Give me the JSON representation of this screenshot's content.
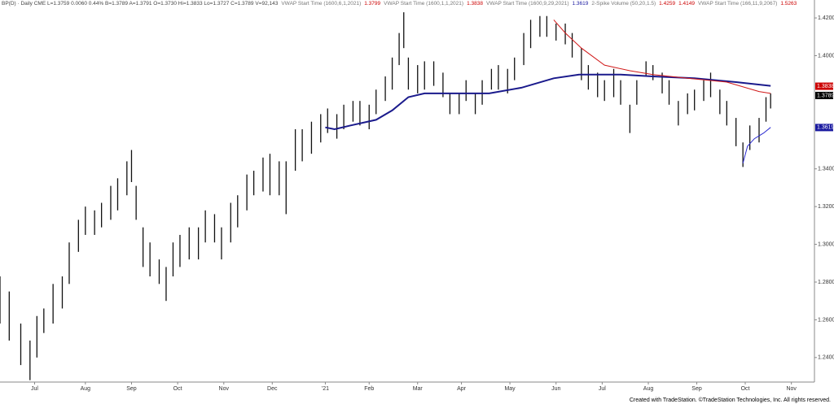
{
  "chart_data": {
    "type": "ohlc",
    "header": [
      {
        "text": "BP(D) · Daily  CME  L=1.3759  0.0060  0.44%  B=1.3789  A=1.3791  O=1.3730  Hi=1.3833  Lo=1.3727  C=1.3789  V=92,143",
        "color": "#444444"
      },
      {
        "text": "VWAP Start Time (1600,6,1,2021)",
        "color": "#777777"
      },
      {
        "text": "1.3799",
        "color": "#cc0000"
      },
      {
        "text": "VWAP Start Time (1600,1,1,2021)",
        "color": "#777777"
      },
      {
        "text": "1.3838",
        "color": "#cc0000"
      },
      {
        "text": "VWAP Start Time (1600,9,29,2021)",
        "color": "#777777"
      },
      {
        "text": "1.3619",
        "color": "#1a1aa0"
      },
      {
        "text": "2-Spike Volume (50,20,1.5)",
        "color": "#777777"
      },
      {
        "text": "1.4259",
        "color": "#cc0000"
      },
      {
        "text": "1.4149",
        "color": "#cc0000"
      },
      {
        "text": "VWAP Start Time (166,11,9,2067)",
        "color": "#777777"
      },
      {
        "text": "1.5263",
        "color": "#cc0000"
      }
    ],
    "color": "#111111",
    "x": [
      0,
      4,
      9,
      13,
      16,
      19,
      23,
      27,
      30,
      34,
      37,
      41,
      44,
      48,
      51,
      55,
      57,
      59,
      62,
      65,
      69,
      72,
      75,
      78,
      82,
      86,
      89,
      93,
      96,
      100,
      103,
      107,
      110,
      114,
      117,
      121,
      124,
      128,
      131,
      135,
      139,
      142,
      146,
      149,
      153,
      156,
      160,
      163,
      167,
      170,
      173,
      175,
      177,
      181,
      184,
      188,
      192,
      195,
      199,
      202,
      206,
      209,
      213,
      216,
      220,
      223,
      227,
      230,
      234,
      237,
      241,
      245,
      248,
      252,
      255,
      259,
      262,
      266,
      269,
      273,
      276,
      280,
      283,
      287,
      290,
      294,
      298,
      301,
      305,
      308,
      312,
      315,
      319,
      322,
      325,
      329,
      332,
      334
    ],
    "high": [
      1.283,
      1.275,
      1.258,
      1.249,
      1.262,
      1.266,
      1.279,
      1.283,
      1.301,
      1.313,
      1.32,
      1.318,
      1.322,
      1.331,
      1.335,
      1.344,
      1.35,
      1.331,
      1.309,
      1.301,
      1.292,
      1.288,
      1.301,
      1.305,
      1.309,
      1.309,
      1.318,
      1.316,
      1.309,
      1.322,
      1.326,
      1.337,
      1.339,
      1.346,
      1.348,
      1.344,
      1.344,
      1.361,
      1.361,
      1.365,
      1.369,
      1.372,
      1.369,
      1.374,
      1.376,
      1.376,
      1.374,
      1.382,
      1.389,
      1.399,
      1.412,
      1.423,
      1.399,
      1.395,
      1.397,
      1.397,
      1.391,
      1.38,
      1.38,
      1.387,
      1.38,
      1.387,
      1.393,
      1.395,
      1.393,
      1.399,
      1.412,
      1.419,
      1.421,
      1.421,
      1.417,
      1.417,
      1.412,
      1.404,
      1.395,
      1.391,
      1.387,
      1.393,
      1.387,
      1.374,
      1.387,
      1.397,
      1.395,
      1.391,
      1.387,
      1.376,
      1.38,
      1.382,
      1.387,
      1.391,
      1.382,
      1.376,
      1.367,
      1.354,
      1.363,
      1.367,
      1.378,
      1.38
    ],
    "low": [
      1.258,
      1.249,
      1.236,
      1.228,
      1.24,
      1.253,
      1.258,
      1.266,
      1.279,
      1.296,
      1.305,
      1.305,
      1.309,
      1.313,
      1.318,
      1.326,
      1.333,
      1.313,
      1.288,
      1.283,
      1.279,
      1.27,
      1.283,
      1.288,
      1.292,
      1.292,
      1.301,
      1.301,
      1.292,
      1.301,
      1.309,
      1.318,
      1.326,
      1.328,
      1.326,
      1.326,
      1.316,
      1.339,
      1.344,
      1.348,
      1.354,
      1.359,
      1.356,
      1.361,
      1.365,
      1.363,
      1.361,
      1.369,
      1.376,
      1.382,
      1.395,
      1.404,
      1.382,
      1.38,
      1.382,
      1.384,
      1.378,
      1.369,
      1.369,
      1.376,
      1.369,
      1.374,
      1.382,
      1.382,
      1.38,
      1.387,
      1.395,
      1.404,
      1.41,
      1.41,
      1.408,
      1.406,
      1.399,
      1.387,
      1.382,
      1.378,
      1.376,
      1.378,
      1.374,
      1.359,
      1.374,
      1.389,
      1.387,
      1.38,
      1.374,
      1.363,
      1.369,
      1.371,
      1.376,
      1.378,
      1.369,
      1.363,
      1.352,
      1.341,
      1.35,
      1.354,
      1.365,
      1.372
    ],
    "series": [
      {
        "color": "#1a1a8c",
        "width": 2,
        "x": [
          141,
          145,
          152,
          163,
          170,
          177,
          184,
          198,
          212,
          226,
          240,
          251,
          269,
          283,
          301,
          319,
          334
        ],
        "values": [
          1.362,
          1.361,
          1.363,
          1.366,
          1.371,
          1.378,
          1.38,
          1.38,
          1.38,
          1.383,
          1.388,
          1.39,
          1.39,
          1.389,
          1.388,
          1.386,
          1.384
        ]
      },
      {
        "color": "#d01818",
        "width": 1,
        "x": [
          240,
          245,
          252,
          262,
          273,
          283,
          298,
          315,
          329,
          334
        ],
        "values": [
          1.419,
          1.412,
          1.404,
          1.395,
          1.392,
          1.39,
          1.388,
          1.386,
          1.381,
          1.38
        ]
      },
      {
        "color": "#2a2ad0",
        "width": 1,
        "x": [
          322,
          324,
          327,
          331,
          334
        ],
        "values": [
          1.343,
          1.352,
          1.356,
          1.359,
          1.362
        ]
      }
    ],
    "last_labels": [
      {
        "value": 1.3838,
        "color": "#cc0000"
      },
      {
        "value": 1.3789,
        "color": "#000000"
      },
      {
        "value": 1.3619,
        "color": "#1a1aa0"
      }
    ],
    "xlim": [
      0,
      353
    ],
    "xticks": [
      {
        "value": 15,
        "label": "Jul"
      },
      {
        "value": 37,
        "label": "Aug"
      },
      {
        "value": 57,
        "label": "Sep"
      },
      {
        "value": 77,
        "label": "Oct"
      },
      {
        "value": 97,
        "label": "Nov"
      },
      {
        "value": 118,
        "label": "Dec"
      },
      {
        "value": 141,
        "label": "'21"
      },
      {
        "value": 160,
        "label": "Feb"
      },
      {
        "value": 181,
        "label": "Mar"
      },
      {
        "value": 200,
        "label": "Apr"
      },
      {
        "value": 221,
        "label": "May"
      },
      {
        "value": 241,
        "label": "Jun"
      },
      {
        "value": 261,
        "label": "Jul"
      },
      {
        "value": 281,
        "label": "Aug"
      },
      {
        "value": 302,
        "label": "Sep"
      },
      {
        "value": 323,
        "label": "Oct"
      },
      {
        "value": 343,
        "label": "Nov"
      }
    ],
    "ylim": [
      1.227,
      1.4295
    ],
    "yticks": [
      {
        "value": 1.42,
        "label": "1.4200"
      },
      {
        "value": 1.4,
        "label": "1.4000"
      },
      {
        "value": 1.34,
        "label": "1.3400"
      },
      {
        "value": 1.32,
        "label": "1.3200"
      },
      {
        "value": 1.3,
        "label": "1.3000"
      },
      {
        "value": 1.28,
        "label": "1.2800"
      },
      {
        "value": 1.26,
        "label": "1.2600"
      },
      {
        "value": 1.24,
        "label": "1.2400"
      }
    ],
    "footer": "Created with TradeStation. ©TradeStation Technologies, Inc. All rights reserved."
  }
}
